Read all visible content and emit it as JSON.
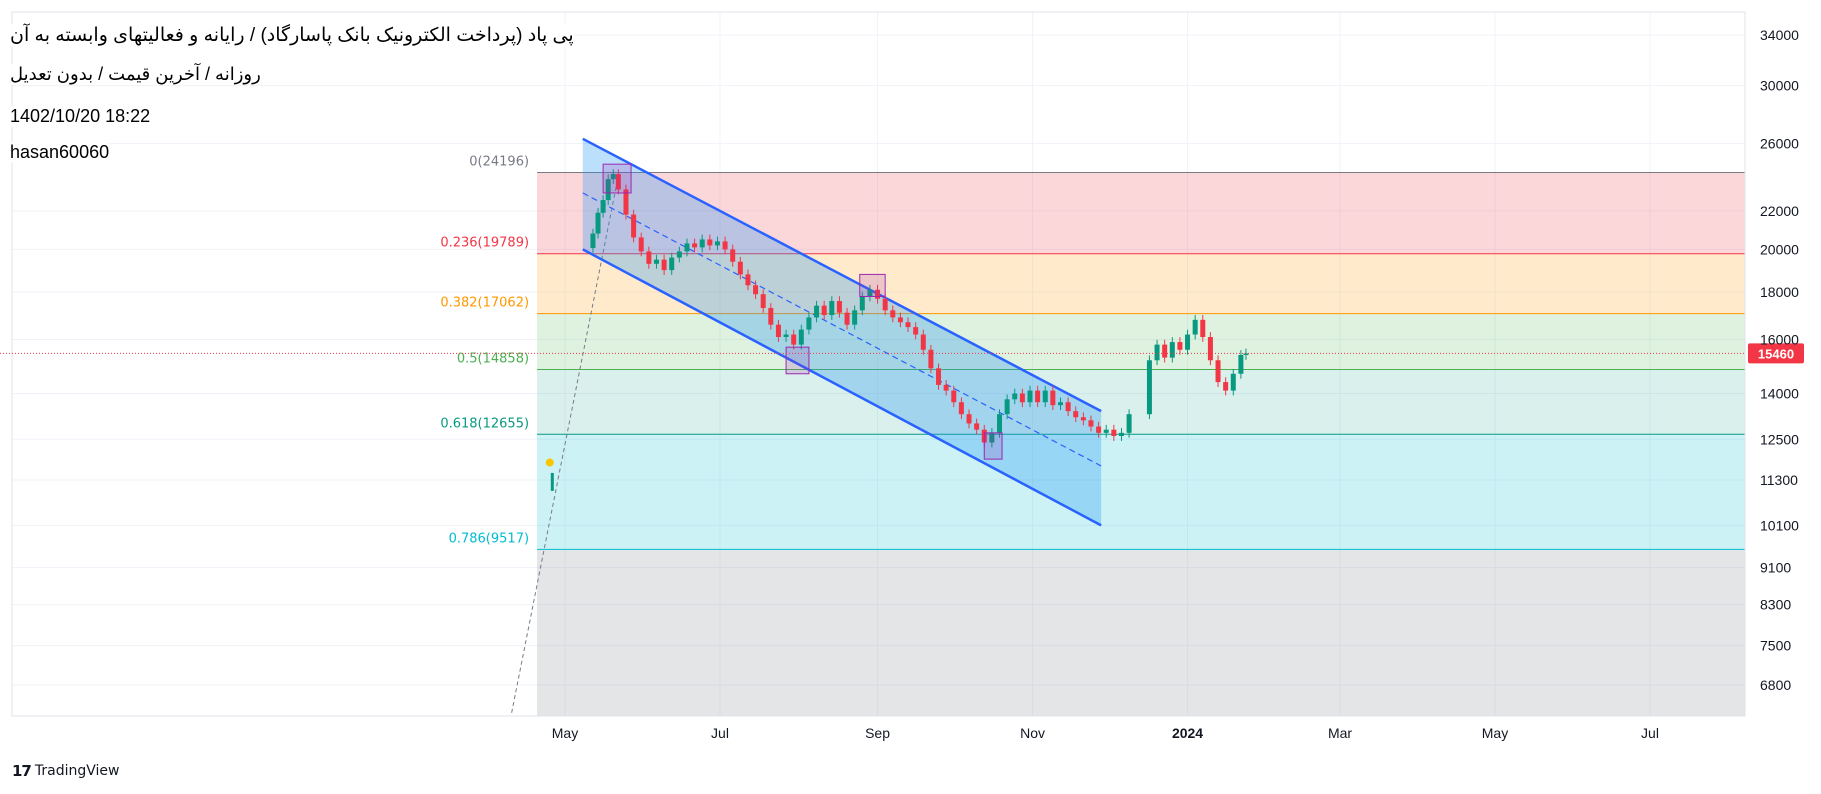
{
  "header": {
    "title": "پی پاد (پرداخت الکترونیک بانک پاسارگاد) / رایانه و فعالیتهای وابسته به آن",
    "subtitle": "روزانه / آخرین قیمت / بدون تعدیل",
    "timestamp": "1402/10/20 18:22",
    "author": "hasan60060"
  },
  "footer": {
    "brand": "TradingView",
    "logo_icon": "tradingview-logo-icon"
  },
  "chart_data": {
    "type": "candlestick",
    "yscale": "log",
    "ylim": [
      6300,
      36000
    ],
    "y_ticks": [
      34000,
      30000,
      26000,
      22000,
      20000,
      18000,
      16000,
      14000,
      12500,
      11300,
      10100,
      9100,
      8300,
      7500,
      6800
    ],
    "x_ticks": [
      {
        "label": "May",
        "date": "2023-05-01"
      },
      {
        "label": "Jul",
        "date": "2023-07-01"
      },
      {
        "label": "Sep",
        "date": "2023-09-01"
      },
      {
        "label": "Nov",
        "date": "2023-11-01"
      },
      {
        "label": "2024",
        "date": "2024-01-01",
        "bold": true
      },
      {
        "label": "Mar",
        "date": "2024-03-01"
      },
      {
        "label": "May",
        "date": "2024-05-01"
      },
      {
        "label": "Jul",
        "date": "2024-07-01"
      }
    ],
    "last_price": {
      "value": 15460,
      "color": "#f23645"
    },
    "fib_levels": [
      {
        "label": "0(24196)",
        "value": 24196,
        "line_color": "#787b86",
        "zone_color": "rgba(242,54,69,0.20)",
        "label_color": "#787b86"
      },
      {
        "label": "0.236(19789)",
        "value": 19789,
        "line_color": "#f23645",
        "zone_color": "rgba(255,152,0,0.20)",
        "label_color": "#f23645"
      },
      {
        "label": "0.382(17062)",
        "value": 17062,
        "line_color": "#ff9800",
        "zone_color": "rgba(76,175,80,0.18)",
        "label_color": "#ff9800"
      },
      {
        "label": "0.5(14858)",
        "value": 14858,
        "line_color": "#4caf50",
        "zone_color": "rgba(8,153,129,0.15)",
        "label_color": "#4caf50"
      },
      {
        "label": "0.618(12655)",
        "value": 12655,
        "line_color": "#089981",
        "zone_color": "rgba(0,188,212,0.20)",
        "label_color": "#089981"
      },
      {
        "label": "0.786(9517)",
        "value": 9517,
        "line_color": "#00bcd4",
        "zone_color": "rgba(120,123,134,0.20)",
        "label_color": "#00bcd4"
      }
    ],
    "fib_range": {
      "start": "2023-04-20",
      "end": "2024-09-30"
    },
    "channel": {
      "color": "#2962ff",
      "fill": "rgba(33,150,243,0.30)",
      "upper": [
        {
          "date": "2023-05-08",
          "value": 26300
        },
        {
          "date": "2023-11-28",
          "value": 13400
        }
      ],
      "lower": [
        {
          "date": "2023-05-08",
          "value": 20000
        },
        {
          "date": "2023-11-28",
          "value": 10100
        }
      ],
      "mid": [
        {
          "date": "2023-05-08",
          "value": 23000
        },
        {
          "date": "2023-11-28",
          "value": 11700
        }
      ]
    },
    "trend_line": {
      "from": {
        "date": "2023-04-10",
        "value": 6350
      },
      "to": {
        "date": "2023-05-22",
        "value": 24000
      },
      "color": "#787b86"
    },
    "highlight_boxes": [
      {
        "from": "2023-05-16",
        "to": "2023-05-27",
        "low": 23000,
        "high": 24700
      },
      {
        "from": "2023-07-27",
        "to": "2023-08-05",
        "low": 14700,
        "high": 15700
      },
      {
        "from": "2023-08-25",
        "to": "2023-09-04",
        "low": 17800,
        "high": 18800
      },
      {
        "from": "2023-10-13",
        "to": "2023-10-20",
        "low": 11900,
        "high": 12700
      }
    ],
    "early_markers": [
      {
        "date": "2023-04-25",
        "value": 11800,
        "kind": "dot",
        "color": "#f7c600"
      },
      {
        "date": "2023-04-26",
        "from": 11000,
        "to": 11500,
        "kind": "bar",
        "color": "#089981"
      }
    ],
    "candles": [
      {
        "date": "2023-05-12",
        "c": 20800
      },
      {
        "date": "2023-05-14",
        "c": 21900
      },
      {
        "date": "2023-05-16",
        "c": 22600
      },
      {
        "date": "2023-05-18",
        "c": 23800
      },
      {
        "date": "2023-05-20",
        "c": 24100
      },
      {
        "date": "2023-05-22",
        "c": 23200
      },
      {
        "date": "2023-05-25",
        "c": 21800
      },
      {
        "date": "2023-05-28",
        "c": 20600
      },
      {
        "date": "2023-05-31",
        "c": 19900
      },
      {
        "date": "2023-06-03",
        "c": 19300
      },
      {
        "date": "2023-06-06",
        "c": 19500
      },
      {
        "date": "2023-06-09",
        "c": 19000
      },
      {
        "date": "2023-06-12",
        "c": 19600
      },
      {
        "date": "2023-06-15",
        "c": 19900
      },
      {
        "date": "2023-06-18",
        "c": 20300
      },
      {
        "date": "2023-06-21",
        "c": 20100
      },
      {
        "date": "2023-06-24",
        "c": 20500
      },
      {
        "date": "2023-06-27",
        "c": 20200
      },
      {
        "date": "2023-06-30",
        "c": 20400
      },
      {
        "date": "2023-07-03",
        "c": 20000
      },
      {
        "date": "2023-07-06",
        "c": 19400
      },
      {
        "date": "2023-07-09",
        "c": 18800
      },
      {
        "date": "2023-07-12",
        "c": 18300
      },
      {
        "date": "2023-07-15",
        "c": 17900
      },
      {
        "date": "2023-07-18",
        "c": 17300
      },
      {
        "date": "2023-07-21",
        "c": 16600
      },
      {
        "date": "2023-07-24",
        "c": 16100
      },
      {
        "date": "2023-07-27",
        "c": 16200
      },
      {
        "date": "2023-07-30",
        "c": 15800
      },
      {
        "date": "2023-08-02",
        "c": 16400
      },
      {
        "date": "2023-08-05",
        "c": 16900
      },
      {
        "date": "2023-08-08",
        "c": 17400
      },
      {
        "date": "2023-08-11",
        "c": 17000
      },
      {
        "date": "2023-08-14",
        "c": 17600
      },
      {
        "date": "2023-08-17",
        "c": 17100
      },
      {
        "date": "2023-08-20",
        "c": 16600
      },
      {
        "date": "2023-08-23",
        "c": 17200
      },
      {
        "date": "2023-08-26",
        "c": 17800
      },
      {
        "date": "2023-08-29",
        "c": 18100
      },
      {
        "date": "2023-09-01",
        "c": 17700
      },
      {
        "date": "2023-09-04",
        "c": 17200
      },
      {
        "date": "2023-09-07",
        "c": 16900
      },
      {
        "date": "2023-09-10",
        "c": 16700
      },
      {
        "date": "2023-09-13",
        "c": 16500
      },
      {
        "date": "2023-09-16",
        "c": 16200
      },
      {
        "date": "2023-09-19",
        "c": 15600
      },
      {
        "date": "2023-09-22",
        "c": 14900
      },
      {
        "date": "2023-09-25",
        "c": 14300
      },
      {
        "date": "2023-09-28",
        "c": 14100
      },
      {
        "date": "2023-10-01",
        "c": 13700
      },
      {
        "date": "2023-10-04",
        "c": 13300
      },
      {
        "date": "2023-10-07",
        "c": 13000
      },
      {
        "date": "2023-10-10",
        "c": 12800
      },
      {
        "date": "2023-10-13",
        "c": 12400
      },
      {
        "date": "2023-10-16",
        "c": 12700
      },
      {
        "date": "2023-10-19",
        "c": 13300
      },
      {
        "date": "2023-10-22",
        "c": 13800
      },
      {
        "date": "2023-10-25",
        "c": 14000
      },
      {
        "date": "2023-10-28",
        "c": 13700
      },
      {
        "date": "2023-10-31",
        "c": 14100
      },
      {
        "date": "2023-11-03",
        "c": 13700
      },
      {
        "date": "2023-11-06",
        "c": 14100
      },
      {
        "date": "2023-11-09",
        "c": 13600
      },
      {
        "date": "2023-11-12",
        "c": 13700
      },
      {
        "date": "2023-11-15",
        "c": 13400
      },
      {
        "date": "2023-11-18",
        "c": 13200
      },
      {
        "date": "2023-11-21",
        "c": 13100
      },
      {
        "date": "2023-11-24",
        "c": 12900
      },
      {
        "date": "2023-11-27",
        "c": 12700
      },
      {
        "date": "2023-11-30",
        "c": 12800
      },
      {
        "date": "2023-12-03",
        "c": 12600
      },
      {
        "date": "2023-12-06",
        "c": 12700
      },
      {
        "date": "2023-12-09",
        "c": 13300
      },
      {
        "date": "2023-12-17",
        "c": 15200
      },
      {
        "date": "2023-12-20",
        "c": 15800
      },
      {
        "date": "2023-12-23",
        "c": 15300
      },
      {
        "date": "2023-12-26",
        "c": 15900
      },
      {
        "date": "2023-12-29",
        "c": 15600
      },
      {
        "date": "2024-01-01",
        "c": 16200
      },
      {
        "date": "2024-01-04",
        "c": 16800
      },
      {
        "date": "2024-01-07",
        "c": 16100
      },
      {
        "date": "2024-01-10",
        "c": 15200
      },
      {
        "date": "2024-01-13",
        "c": 14400
      },
      {
        "date": "2024-01-16",
        "c": 14100
      },
      {
        "date": "2024-01-19",
        "c": 14700
      },
      {
        "date": "2024-01-22",
        "c": 15400
      },
      {
        "date": "2024-01-24",
        "c": 15460
      }
    ]
  },
  "colors": {
    "up": "#089981",
    "down": "#f23645",
    "axis_text": "#131722",
    "grid": "#f0f3fa"
  }
}
